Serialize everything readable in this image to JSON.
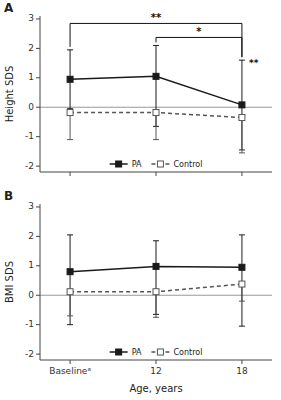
{
  "chart_data": [
    {
      "type": "line",
      "title": "A",
      "ylabel": "Height SDS",
      "categories": [
        null,
        null,
        null
      ],
      "series": [
        {
          "name": "PA",
          "color": "#1a1a1a",
          "marker": "square",
          "line_style": "solid",
          "values": [
            0.95,
            1.05,
            0.08
          ],
          "lower": [
            -0.05,
            -0.65,
            -1.45
          ],
          "upper": [
            1.95,
            2.1,
            1.6
          ]
        },
        {
          "name": "Control",
          "color": "#555555",
          "marker": "open-square",
          "line_style": "dashed",
          "values": [
            -0.18,
            -0.18,
            -0.35
          ],
          "lower": [
            -1.1,
            -1.1,
            -1.55
          ],
          "upper": [
            -0.18,
            -0.18,
            -0.35
          ]
        }
      ],
      "ylim": [
        -2.2,
        3.1
      ],
      "yticks": [
        -2,
        -1,
        0,
        1,
        2,
        3
      ],
      "grid": false,
      "legend": "bottom",
      "annotations": [
        {
          "text": "**",
          "from": 0,
          "to": 2
        },
        {
          "text": "*",
          "from": 1,
          "to": 2
        },
        {
          "text": "**",
          "at": 2
        }
      ]
    },
    {
      "type": "line",
      "title": "B",
      "ylabel": "BMI SDS",
      "xlabel": "Age, years",
      "categories": [
        "Baselineᵃ",
        "12",
        "18"
      ],
      "series": [
        {
          "name": "PA",
          "color": "#1a1a1a",
          "marker": "square",
          "line_style": "solid",
          "values": [
            0.8,
            0.98,
            0.95
          ],
          "lower": [
            -1.0,
            -0.65,
            -1.05
          ],
          "upper": [
            2.05,
            1.85,
            2.05
          ]
        },
        {
          "name": "Control",
          "color": "#555555",
          "marker": "open-square",
          "line_style": "dashed",
          "values": [
            0.12,
            0.12,
            0.38
          ],
          "lower": [
            -0.7,
            -0.75,
            -0.2
          ],
          "upper": [
            0.12,
            0.12,
            0.38
          ]
        }
      ],
      "ylim": [
        -2.2,
        3.1
      ],
      "yticks": [
        -2,
        -1,
        0,
        1,
        2,
        3
      ],
      "grid": false,
      "legend": "bottom"
    }
  ]
}
